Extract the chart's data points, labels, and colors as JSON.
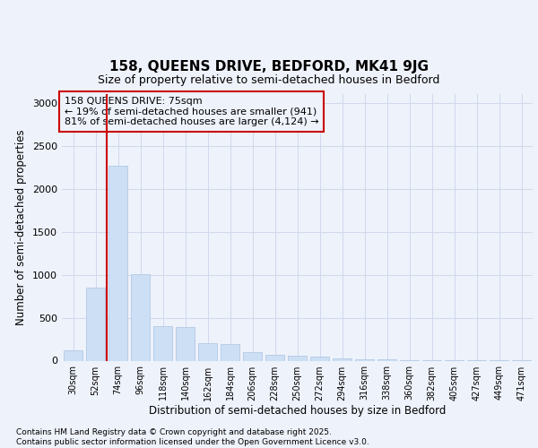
{
  "title1": "158, QUEENS DRIVE, BEDFORD, MK41 9JG",
  "title2": "Size of property relative to semi-detached houses in Bedford",
  "xlabel": "Distribution of semi-detached houses by size in Bedford",
  "ylabel": "Number of semi-detached properties",
  "footer1": "Contains HM Land Registry data © Crown copyright and database right 2025.",
  "footer2": "Contains public sector information licensed under the Open Government Licence v3.0.",
  "annotation_line1": "158 QUEENS DRIVE: 75sqm",
  "annotation_line2": "← 19% of semi-detached houses are smaller (941)",
  "annotation_line3": "81% of semi-detached houses are larger (4,124) →",
  "categories": [
    "30sqm",
    "52sqm",
    "74sqm",
    "96sqm",
    "118sqm",
    "140sqm",
    "162sqm",
    "184sqm",
    "206sqm",
    "228sqm",
    "250sqm",
    "272sqm",
    "294sqm",
    "316sqm",
    "338sqm",
    "360sqm",
    "382sqm",
    "405sqm",
    "427sqm",
    "449sqm",
    "471sqm"
  ],
  "values": [
    115,
    850,
    2270,
    1010,
    400,
    390,
    205,
    195,
    100,
    70,
    60,
    45,
    30,
    18,
    12,
    8,
    5,
    4,
    3,
    2,
    1
  ],
  "bar_color": "#ccdff5",
  "bar_edge_color": "#aac4e0",
  "vline_color": "#cc0000",
  "vline_x_index": 2,
  "annotation_box_edge_color": "#cc0000",
  "background_color": "#eef2fb",
  "grid_color": "#d0d8ec",
  "ylim": [
    0,
    3100
  ],
  "yticks": [
    0,
    500,
    1000,
    1500,
    2000,
    2500,
    3000
  ]
}
